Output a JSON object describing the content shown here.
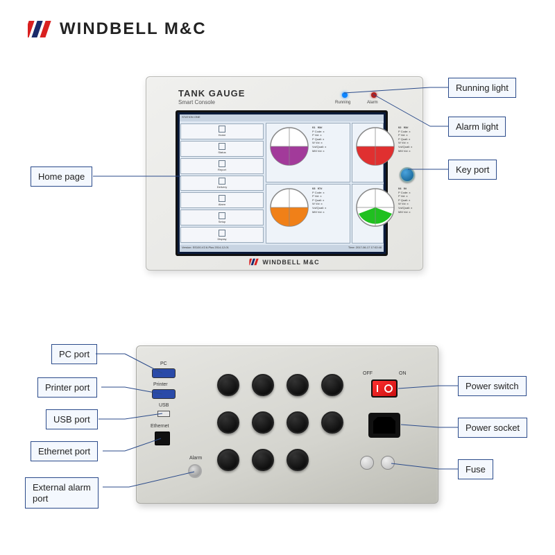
{
  "brand": {
    "text": "WINDBELL M&C",
    "logo_colors": [
      "#d92020",
      "#1a2a6a",
      "#d92020"
    ]
  },
  "colors": {
    "callout_border": "#2a4a8a",
    "callout_bg": "#f4f8fe",
    "device_bg_light": "#f0f0ee",
    "device_bg_dark": "#e4e4e0",
    "screen_border": "#111111",
    "screen_bg": "#dfe8f2"
  },
  "front": {
    "title": "TANK GAUGE",
    "subtitle": "Smart Console",
    "led_running": "Running",
    "led_alarm": "Alarm",
    "screen_header": "STATION ONE",
    "footer_left": "Version: SS100-V2.6-Plus 2014-12-01",
    "footer_right": "Time: 2017-06-17 17:02:48",
    "tanks": [
      {
        "id": "01",
        "name": "#93",
        "sub": "93#",
        "fill": 0.55,
        "color": "#a23a9a"
      },
      {
        "id": "02",
        "name": "#93",
        "sub": "93#",
        "fill": 0.5,
        "color": "#e03030"
      },
      {
        "id": "03",
        "name": "#97",
        "sub": "97#",
        "fill": 0.55,
        "color": "#f08018"
      },
      {
        "id": "04",
        "name": "#0",
        "sub": "0#",
        "fill": 0.45,
        "color": "#20c020"
      }
    ],
    "tank_stat_labels": [
      "P Code: x",
      "P Vol: x",
      "P Quali: x",
      "W Vol: x",
      "Vol/Quali: x",
      "MM Vol: x"
    ],
    "side_buttons": [
      "Home",
      "Status",
      "Report",
      "Delivery",
      "Alarm",
      "Setup",
      "Display"
    ],
    "brand_footer": "WINDBELL M&C"
  },
  "rear": {
    "labels": {
      "pc": "PC",
      "printer": "Printer",
      "usb": "USB",
      "ethernet": "Ethernet",
      "alarm": "Alarm",
      "off": "OFF",
      "on": "ON"
    }
  },
  "callouts": {
    "home_page": "Home page",
    "running_light": "Running light",
    "alarm_light": "Alarm light",
    "key_port": "Key port",
    "pc_port": "PC port",
    "printer_port": "Printer port",
    "usb_port": "USB port",
    "ethernet_port": "Ethernet port",
    "external_alarm_port": "External alarm\nport",
    "power_switch": "Power switch",
    "power_socket": "Power socket",
    "fuse": "Fuse"
  }
}
